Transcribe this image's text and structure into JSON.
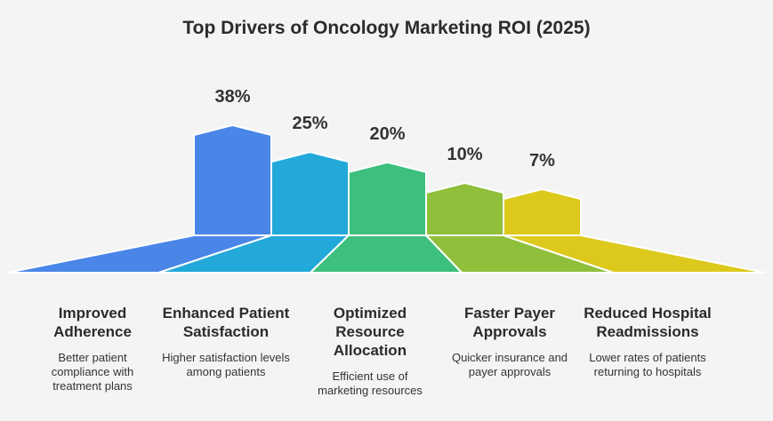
{
  "chart_data": {
    "type": "bar",
    "title": "Top Drivers of Oncology Marketing ROI (2025)",
    "categories": [
      "Improved Adherence",
      "Enhanced Patient Satisfaction",
      "Optimized Resource Allocation",
      "Faster Payer Approvals",
      "Reduced Hospital Readmissions"
    ],
    "values": [
      38,
      25,
      20,
      10,
      7
    ],
    "value_labels": [
      "38%",
      "25%",
      "20%",
      "10%",
      "7%"
    ],
    "descriptions": [
      "Better patient compliance with treatment plans",
      "Higher satisfaction levels among patients",
      "Efficient use of marketing resources",
      "Quicker insurance and payer approvals",
      "Lower rates of patients returning to hospitals"
    ],
    "colors": [
      "#4a86e8",
      "#22a9d9",
      "#3dbf7e",
      "#8fbf3b",
      "#dcc91c"
    ],
    "ylim": [
      0,
      38
    ],
    "xlabel": "",
    "ylabel": ""
  }
}
